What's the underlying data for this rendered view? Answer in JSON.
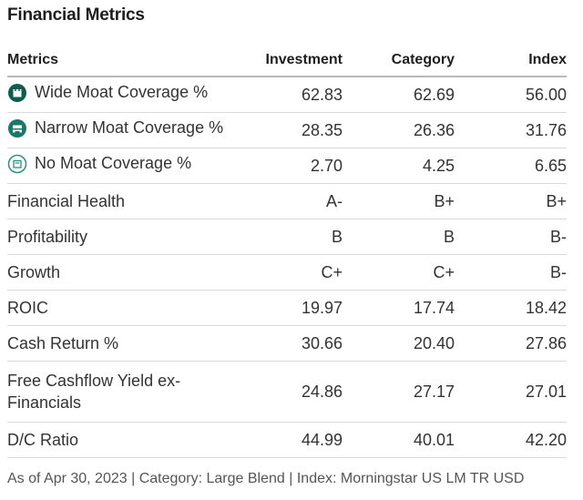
{
  "title": "Financial Metrics",
  "columns": {
    "metrics": "Metrics",
    "investment": "Investment",
    "category": "Category",
    "index": "Index"
  },
  "rows": [
    {
      "label": "Wide Moat Coverage %",
      "icon": "wide-moat-icon",
      "investment": "62.83",
      "category": "62.69",
      "index": "56.00"
    },
    {
      "label": "Narrow Moat Coverage %",
      "icon": "narrow-moat-icon",
      "investment": "28.35",
      "category": "26.36",
      "index": "31.76"
    },
    {
      "label": "No Moat Coverage %",
      "icon": "no-moat-icon",
      "investment": "2.70",
      "category": "4.25",
      "index": "6.65"
    },
    {
      "label": "Financial Health",
      "investment": "A-",
      "category": "B+",
      "index": "B+"
    },
    {
      "label": "Profitability",
      "investment": "B",
      "category": "B",
      "index": "B-"
    },
    {
      "label": "Growth",
      "investment": "C+",
      "category": "C+",
      "index": "B-"
    },
    {
      "label": "ROIC",
      "investment": "19.97",
      "category": "17.74",
      "index": "18.42"
    },
    {
      "label": "Cash Return %",
      "investment": "30.66",
      "category": "20.40",
      "index": "27.86"
    },
    {
      "label_line1": "Free Cashflow Yield ex-",
      "label_line2": "Financials",
      "investment": "24.86",
      "category": "27.17",
      "index": "27.01"
    },
    {
      "label": "D/C Ratio",
      "investment": "44.99",
      "category": "40.01",
      "index": "42.20"
    }
  ],
  "footer": "As of Apr 30, 2023 | Category: Large Blend | Index: Morningstar US LM TR USD",
  "colors": {
    "wide_moat": "#0e5e4c",
    "narrow_moat": "#19786a",
    "no_moat": "#2c8f80",
    "header_rule": "#b9b9b9",
    "row_rule": "#d9d9d9"
  }
}
